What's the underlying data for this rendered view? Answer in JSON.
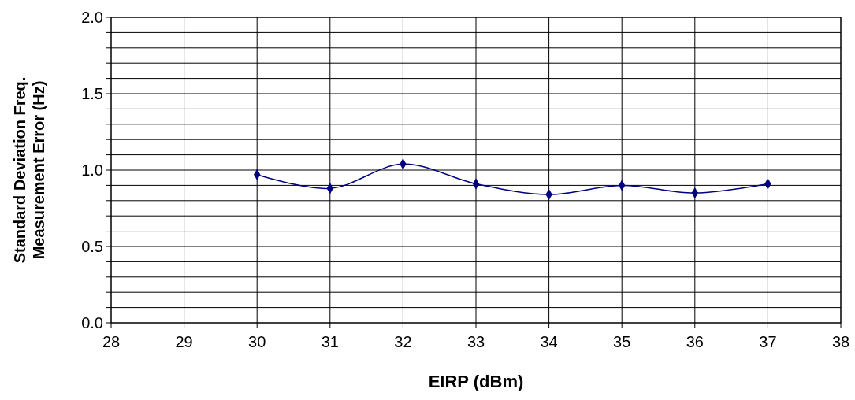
{
  "chart_data": {
    "type": "line",
    "xlabel": "EIRP (dBm)",
    "ylabel": "Standard Deviation Freq. Measurement Error (Hz)",
    "x": [
      30,
      31,
      32,
      33,
      34,
      35,
      36,
      37
    ],
    "series": [
      {
        "color": "#000080",
        "values": [
          0.97,
          0.88,
          1.04,
          0.91,
          0.84,
          0.9,
          0.85,
          0.91
        ]
      }
    ],
    "xlim": [
      28,
      38
    ],
    "xticks": [
      28,
      29,
      30,
      31,
      32,
      33,
      34,
      35,
      36,
      37,
      38
    ],
    "ylim": [
      0,
      2
    ],
    "yticks": [
      {
        "value": 0,
        "label": "0.0"
      },
      {
        "value": 0.1,
        "label": null
      },
      {
        "value": 0.2,
        "label": null
      },
      {
        "value": 0.3,
        "label": null
      },
      {
        "value": 0.4,
        "label": null
      },
      {
        "value": 0.5,
        "label": "0.5"
      },
      {
        "value": 0.6,
        "label": null
      },
      {
        "value": 0.7,
        "label": null
      },
      {
        "value": 0.8,
        "label": null
      },
      {
        "value": 0.9,
        "label": null
      },
      {
        "value": 1,
        "label": "1.0"
      },
      {
        "value": 1.1,
        "label": null
      },
      {
        "value": 1.2,
        "label": null
      },
      {
        "value": 1.3,
        "label": null
      },
      {
        "value": 1.4,
        "label": null
      },
      {
        "value": 1.5,
        "label": "1.5"
      },
      {
        "value": 1.6,
        "label": null
      },
      {
        "value": 1.7,
        "label": null
      },
      {
        "value": 1.8,
        "label": null
      },
      {
        "value": 1.9,
        "label": null
      },
      {
        "value": 2,
        "label": "2.0"
      }
    ],
    "grid": true,
    "marker": "diamond",
    "line_style": "solid"
  }
}
